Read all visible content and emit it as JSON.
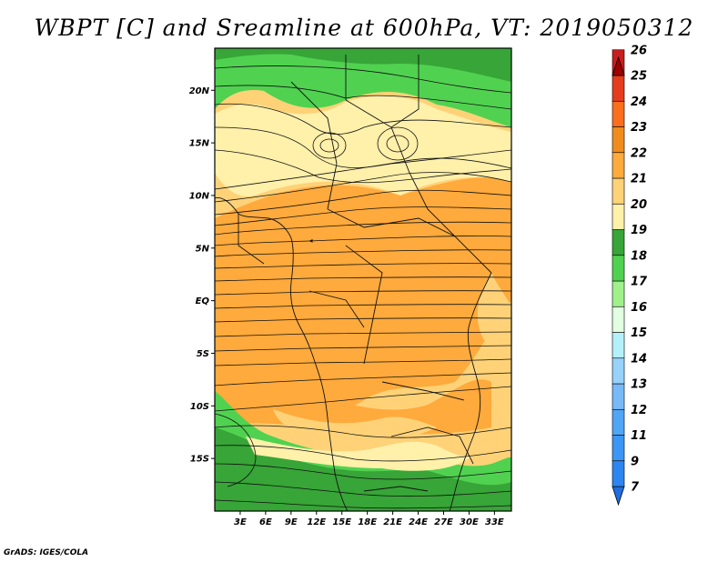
{
  "title": "WBPT [C] and Sreamline at 600hPa, VT: 2019050312",
  "footer": "GrADS: IGES/COLA",
  "map": {
    "lat_ticks": [
      {
        "label": "20N",
        "value": 20
      },
      {
        "label": "15N",
        "value": 15
      },
      {
        "label": "10N",
        "value": 10
      },
      {
        "label": "5N",
        "value": 5
      },
      {
        "label": "EQ",
        "value": 0
      },
      {
        "label": "5S",
        "value": -5
      },
      {
        "label": "10S",
        "value": -10
      },
      {
        "label": "15S",
        "value": -15
      }
    ],
    "lon_ticks": [
      {
        "label": "3E",
        "value": 3
      },
      {
        "label": "6E",
        "value": 6
      },
      {
        "label": "9E",
        "value": 9
      },
      {
        "label": "12E",
        "value": 12
      },
      {
        "label": "15E",
        "value": 15
      },
      {
        "label": "18E",
        "value": 18
      },
      {
        "label": "21E",
        "value": 21
      },
      {
        "label": "24E",
        "value": 24
      },
      {
        "label": "27E",
        "value": 27
      },
      {
        "label": "30E",
        "value": 30
      },
      {
        "label": "33E",
        "value": 33
      }
    ],
    "lat_range": [
      -20,
      24
    ],
    "lon_range": [
      0,
      35
    ]
  },
  "colorbar": {
    "levels": [
      {
        "label": "7",
        "color": "#1e6ee0"
      },
      {
        "label": "9",
        "color": "#2d85f0"
      },
      {
        "label": "11",
        "color": "#3c96f5"
      },
      {
        "label": "12",
        "color": "#50a5f5"
      },
      {
        "label": "13",
        "color": "#78b9f8"
      },
      {
        "label": "14",
        "color": "#96d2fa"
      },
      {
        "label": "15",
        "color": "#b4f0fa"
      },
      {
        "label": "16",
        "color": "#e1ffe1"
      },
      {
        "label": "17",
        "color": "#a0f08c"
      },
      {
        "label": "18",
        "color": "#50d250"
      },
      {
        "label": "19",
        "color": "#37a537"
      },
      {
        "label": "20",
        "color": "#fff0aa"
      },
      {
        "label": "21",
        "color": "#ffd278"
      },
      {
        "label": "22",
        "color": "#ffaa3c"
      },
      {
        "label": "23",
        "color": "#f08c1e"
      },
      {
        "label": "24",
        "color": "#fa6e1e"
      },
      {
        "label": "25",
        "color": "#e63c1e"
      },
      {
        "label": "26",
        "color": "#c81e1e"
      }
    ],
    "top_color": "#a00000"
  }
}
